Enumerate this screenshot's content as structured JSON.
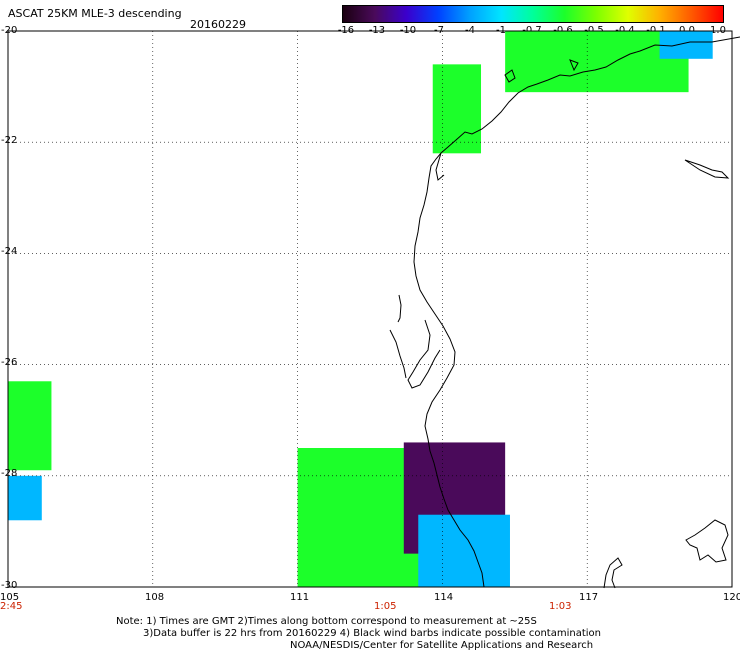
{
  "header": {
    "title": "ASCAT 25KM MLE-3 descending",
    "date": "20160229"
  },
  "colorbar": {
    "labels": [
      "-16",
      "-13",
      "-10",
      "-7",
      "-4",
      "-1",
      "-0.7",
      "-0.6",
      "-0.5",
      "-0.4",
      "-0.1",
      "0.0",
      "1.0"
    ],
    "colors": [
      "#1a0010",
      "#4a0a5a",
      "#3b00cc",
      "#0040ff",
      "#00a0ff",
      "#00e5ff",
      "#00ff9a",
      "#1cff2a",
      "#7dff00",
      "#dfff00",
      "#ffb000",
      "#ff5a00",
      "#ff0000"
    ]
  },
  "axes": {
    "lon_labels": [
      "105",
      "108",
      "111",
      "114",
      "117",
      "120"
    ],
    "lat_labels": [
      "-20",
      "-22",
      "-24",
      "-26",
      "-28",
      "-30"
    ],
    "time_labels": [
      "2:45",
      "1:05",
      "1:03"
    ]
  },
  "footer": {
    "line1": "Note: 1) Times are GMT 2)Times along bottom correspond to measurement at ~25S",
    "line2": "3)Data buffer is 22 hrs from 20160229 4) Black wind barbs indicate possible contamination",
    "line3": "NOAA/NESDIS/Center for Satellite Applications and Research"
  },
  "chart_data": {
    "type": "heatmap",
    "title": "ASCAT 25KM MLE-3 descending",
    "x_range_lon": [
      105,
      120
    ],
    "y_range_lat": [
      -30,
      -20
    ],
    "grid": true,
    "legend_position": "top-right colorbar",
    "swaths": [
      {
        "name": "",
        "mle_class": "-0.6 to -0.5",
        "color": "#1cff2a",
        "lon": [
          113.8,
          114.8
        ],
        "lat": [
          -22.2,
          -20.6
        ]
      },
      {
        "name": "",
        "mle_class": "-0.6 to -0.5",
        "color": "#1cff2a",
        "lon": [
          115.3,
          119.1
        ],
        "lat": [
          -21.1,
          -20.0
        ]
      },
      {
        "name": "",
        "mle_class": "-1 to -0.7",
        "color": "#00b7ff",
        "lon": [
          118.5,
          119.6
        ],
        "lat": [
          -20.5,
          -20.0
        ]
      },
      {
        "name": "",
        "mle_class": "-0.6 to -0.5",
        "color": "#1cff2a",
        "lon": [
          105.0,
          105.9
        ],
        "lat": [
          -27.9,
          -26.3
        ]
      },
      {
        "name": "",
        "mle_class": "-4 to -1",
        "color": "#00b7ff",
        "lon": [
          105.0,
          105.7
        ],
        "lat": [
          -28.8,
          -28.0
        ]
      },
      {
        "name": "",
        "mle_class": "-0.6 to -0.5",
        "color": "#1cff2a",
        "lon": [
          111.0,
          114.5
        ],
        "lat": [
          -30.0,
          -27.5
        ]
      },
      {
        "name": "",
        "mle_class": "-16 to -10",
        "color": "#4a0a5a",
        "lon": [
          113.2,
          115.3
        ],
        "lat": [
          -29.4,
          -27.4
        ]
      },
      {
        "name": "",
        "mle_class": "-4 to -0.7",
        "color": "#00b7ff",
        "lon": [
          113.5,
          115.4
        ],
        "lat": [
          -30.0,
          -28.7
        ]
      }
    ]
  }
}
